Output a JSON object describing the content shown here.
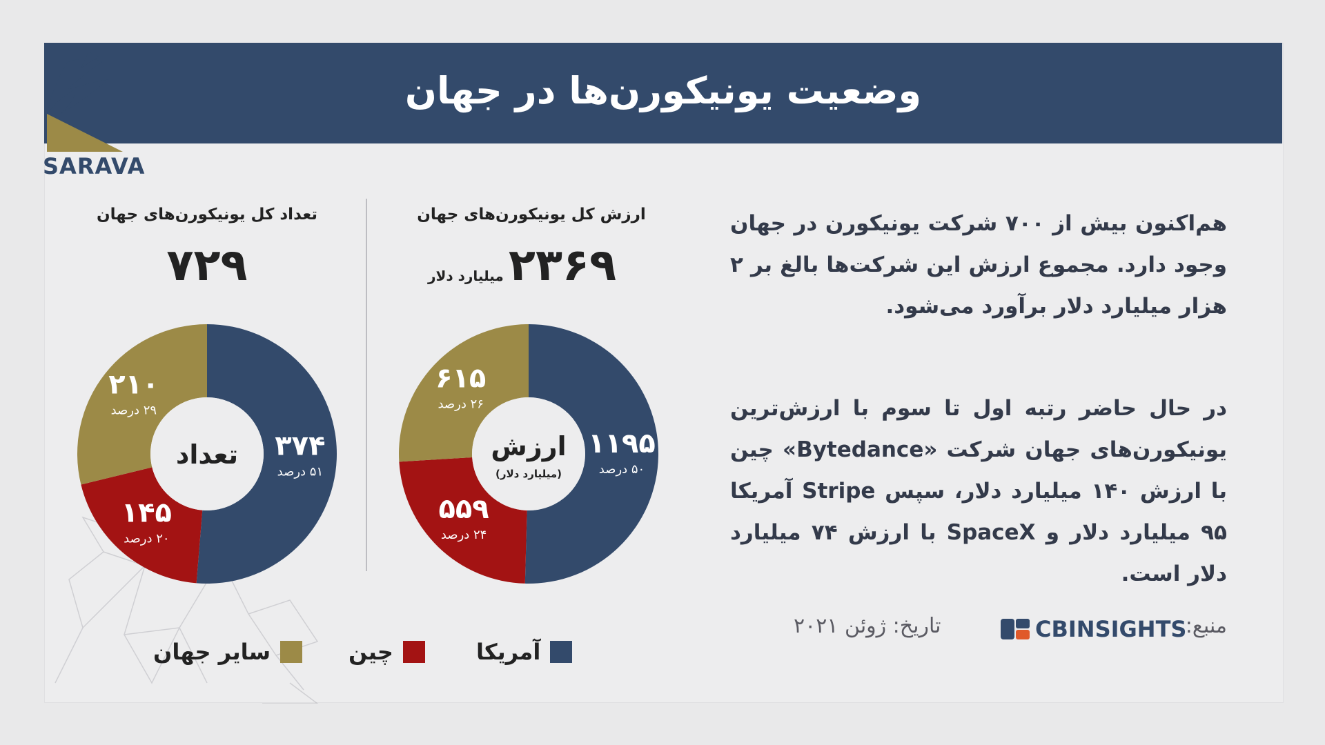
{
  "header": {
    "title": "وضعیت یونیکورن‌ها در جهان",
    "logo_text": "SARAVA"
  },
  "text": {
    "paragraph1": "هم‌اکنون بیش از ۷۰۰ شرکت یونیکورن در جهان وجود دارد. مجموع ارزش این شرکت‌ها بالغ بر ۲ هزار میلیارد دلار برآورد می‌شود.",
    "paragraph2": "در حال حاضر رتبه اول تا سوم با ارزش‌ترین یونیکورن‌های جهان شرکت «Bytedance» چین با ارزش ۱۴۰ میلیارد دلار، سپس Stripe آمریکا ۹۵ میلیارد دلار و SpaceX با ارزش ۷۴ میلیارد دلار است."
  },
  "footer": {
    "source_label": "منبع:",
    "source_name": "CBINSIGHTS",
    "date": "تاریخ: ژوئن ۲۰۲۱"
  },
  "legend": {
    "america": "آمریکا",
    "china": "چین",
    "rest": "سایر جهان"
  },
  "colors": {
    "america": "#334a6b",
    "china": "#a31313",
    "rest": "#9c8a47"
  },
  "chart_data": [
    {
      "type": "pie",
      "title": "ارزش کل یونیکورن‌های جهان",
      "total": "۲۳۶۹",
      "total_unit": "میلیارد دلار",
      "center_label": "ارزش",
      "center_sublabel": "(میلیارد دلار)",
      "categories": [
        "آمریکا",
        "چین",
        "سایر جهان"
      ],
      "values": [
        1195,
        559,
        615
      ],
      "value_labels": [
        "۱۱۹۵",
        "۵۵۹",
        "۶۱۵"
      ],
      "percent_labels": [
        "۵۰ درصد",
        "۲۴ درصد",
        "۲۶ درصد"
      ]
    },
    {
      "type": "pie",
      "title": "تعداد کل یونیکورن‌های جهان",
      "total": "۷۲۹",
      "center_label": "تعداد",
      "categories": [
        "آمریکا",
        "چین",
        "سایر جهان"
      ],
      "values": [
        374,
        145,
        210
      ],
      "value_labels": [
        "۳۷۴",
        "۱۴۵",
        "۲۱۰"
      ],
      "percent_labels": [
        "۵۱ درصد",
        "۲۰ درصد",
        "۲۹ درصد"
      ]
    }
  ]
}
